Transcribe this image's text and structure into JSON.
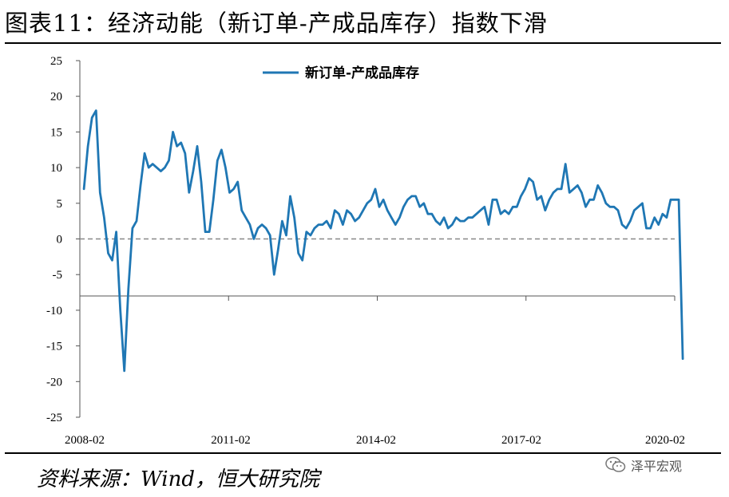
{
  "title": "图表11：经济动能（新订单-产成品库存）指数下滑",
  "source": "资料来源：Wind，恒大研究院",
  "watermark": "泽平宏观",
  "chart_data": {
    "type": "line",
    "title": "图表11：经济动能（新订单-产成品库存）指数下滑",
    "ylim": [
      -25,
      25
    ],
    "yticks": [
      25,
      20,
      15,
      10,
      5,
      0,
      -5,
      -10,
      -15,
      -20,
      -25
    ],
    "xtick_labels": [
      "2008-02",
      "2011-02",
      "2014-02",
      "2017-02",
      "2020-02"
    ],
    "grid": false,
    "legend_position": "top",
    "reference_lines": [
      {
        "y": 0,
        "style": "dashed"
      },
      {
        "y": -8,
        "style": "solid"
      }
    ],
    "colors": {
      "series": "#1f77b4",
      "zero_line": "#888888",
      "axis": "#555555"
    },
    "series": [
      {
        "name": "新订单-产成品库存",
        "start": "2008-01",
        "frequency": "monthly",
        "values": [
          7.0,
          13.0,
          17.0,
          18.0,
          6.5,
          3.0,
          -2.0,
          -3.0,
          1.0,
          -10.0,
          -18.5,
          -7.0,
          1.5,
          2.5,
          7.5,
          12.0,
          10.0,
          10.5,
          10.0,
          9.5,
          10.0,
          11.0,
          15.0,
          13.0,
          13.5,
          12.0,
          6.5,
          9.5,
          13.0,
          8.0,
          1.0,
          1.0,
          5.5,
          11.0,
          12.5,
          10.0,
          6.5,
          7.0,
          8.0,
          4.0,
          3.0,
          2.0,
          0.0,
          1.5,
          2.0,
          1.5,
          0.5,
          -5.0,
          -1.5,
          2.5,
          0.5,
          6.0,
          3.0,
          -2.0,
          -3.0,
          1.0,
          0.5,
          1.5,
          2.0,
          2.0,
          2.5,
          1.5,
          4.0,
          3.5,
          2.0,
          4.0,
          3.5,
          2.5,
          3.0,
          4.0,
          5.0,
          5.5,
          7.0,
          4.5,
          5.5,
          4.0,
          3.0,
          2.0,
          3.0,
          4.5,
          5.5,
          6.0,
          6.0,
          4.5,
          5.0,
          3.5,
          3.5,
          2.5,
          2.0,
          3.0,
          1.5,
          2.0,
          3.0,
          2.5,
          2.5,
          3.0,
          3.0,
          3.5,
          4.0,
          4.5,
          2.0,
          5.5,
          5.5,
          3.5,
          4.0,
          3.5,
          4.5,
          4.5,
          6.0,
          7.0,
          8.5,
          8.0,
          5.5,
          6.0,
          4.0,
          5.5,
          6.5,
          7.0,
          7.0,
          10.5,
          6.5,
          7.0,
          7.5,
          6.5,
          4.5,
          5.5,
          5.5,
          7.5,
          6.5,
          5.0,
          4.5,
          4.5,
          4.0,
          2.0,
          1.5,
          2.5,
          4.0,
          4.5,
          5.0,
          1.5,
          1.5,
          3.0,
          2.0,
          3.5,
          3.0,
          5.5,
          5.5,
          5.5,
          -16.8
        ]
      }
    ]
  }
}
